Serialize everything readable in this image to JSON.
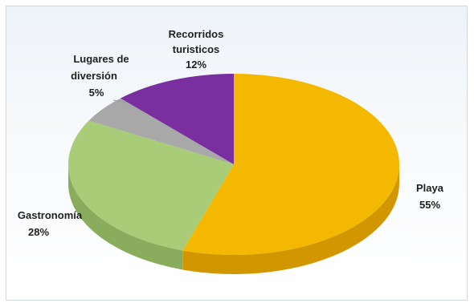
{
  "chart_data": {
    "type": "pie",
    "categories": [
      "Playa",
      "Gastronomía",
      "Lugares de diversión",
      "Recorridos turisticos"
    ],
    "values": [
      55,
      28,
      5,
      12
    ],
    "value_labels": [
      "55%",
      "28%",
      "5%",
      "12%"
    ],
    "colors": {
      "Playa": "#f4b800",
      "Gastronomía": "#a8cc78",
      "Lugares de diversión": "#a8a8a8",
      "Recorridos turisticos": "#7a2fa0"
    },
    "side_colors": {
      "Playa": "#d29700",
      "Gastronomía": "#89ad5d",
      "Lugares de diversión": "#8f8f8f",
      "Recorridos turisticos": "#5c2277"
    },
    "title": "",
    "legend": "none"
  },
  "labels": {
    "playa": {
      "name": "Playa",
      "value": "55%"
    },
    "gastronomia": {
      "name": "Gastronomía",
      "value": "28%"
    },
    "lugares_line1": "Lugares de",
    "lugares_line2": "diversión",
    "lugares_value": "5%",
    "recorridos_line1": "Recorridos",
    "recorridos_line2": "turisticos",
    "recorridos_value": "12%"
  }
}
